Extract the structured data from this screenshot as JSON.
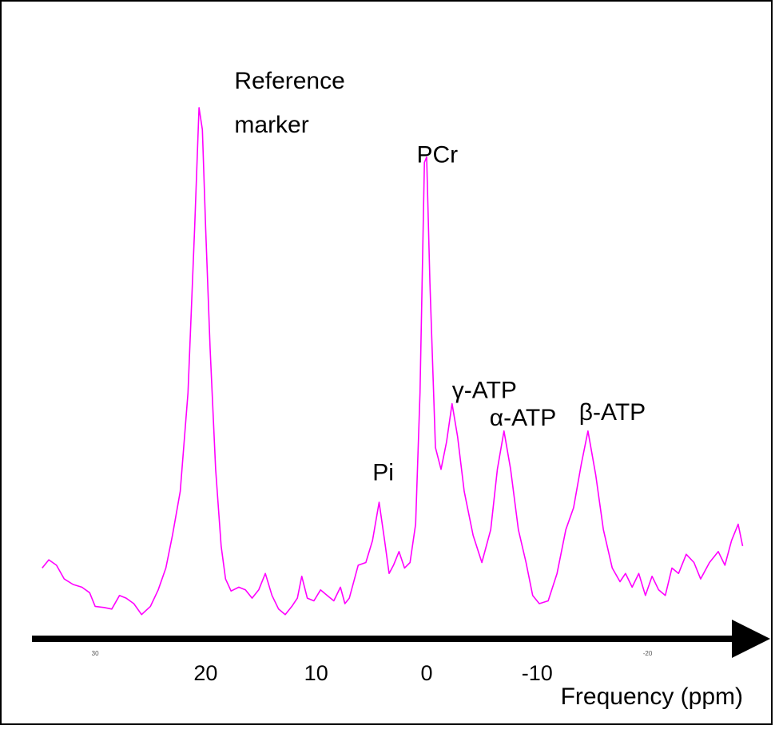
{
  "chart_data": {
    "type": "line",
    "xlabel": "Frequency (ppm)",
    "ylabel": "",
    "xlim": [
      35,
      -29
    ],
    "ylim": [
      -2,
      100
    ],
    "x_reversed": true,
    "grid": false,
    "line_color": "#ff00ff",
    "axis_arrow_color": "#000000",
    "x_ticks_major": [
      {
        "value": 20,
        "label": "20"
      },
      {
        "value": 10,
        "label": "10"
      },
      {
        "value": 0,
        "label": "0"
      },
      {
        "value": -10,
        "label": "-10"
      }
    ],
    "x_ticks_minor": [
      {
        "value": 30,
        "label": "30"
      },
      {
        "value": -20,
        "label": "-20"
      }
    ],
    "annotations": [
      {
        "text": "Reference",
        "x": 17.4,
        "y": 95.5
      },
      {
        "text": "marker",
        "x": 17.4,
        "y": 87.5
      },
      {
        "text": "PCr",
        "x": 0.9,
        "y": 82
      },
      {
        "text": "Pi",
        "x": 4.9,
        "y": 24
      },
      {
        "text": "γ-ATP",
        "x": -2.3,
        "y": 39
      },
      {
        "text": "α-ATP",
        "x": -5.7,
        "y": 34
      },
      {
        "text": "β-ATP",
        "x": -13.8,
        "y": 35
      }
    ],
    "series": [
      {
        "values": [
          [
            34.8,
            8
          ],
          [
            34.2,
            9.5
          ],
          [
            33.5,
            8.5
          ],
          [
            32.8,
            6
          ],
          [
            32,
            5
          ],
          [
            31.2,
            4.5
          ],
          [
            30.5,
            3.5
          ],
          [
            30,
            1
          ],
          [
            29.2,
            0.8
          ],
          [
            28.5,
            0.5
          ],
          [
            27.8,
            3
          ],
          [
            27.2,
            2.5
          ],
          [
            26.5,
            1.5
          ],
          [
            25.8,
            -0.5
          ],
          [
            25,
            1
          ],
          [
            24.3,
            4
          ],
          [
            23.6,
            8
          ],
          [
            23,
            14
          ],
          [
            22.3,
            22
          ],
          [
            21.6,
            40
          ],
          [
            21,
            70
          ],
          [
            20.6,
            92
          ],
          [
            20.3,
            88
          ],
          [
            20,
            70
          ],
          [
            19.6,
            48
          ],
          [
            19.1,
            26
          ],
          [
            18.6,
            12
          ],
          [
            18.2,
            6
          ],
          [
            17.7,
            3.8
          ],
          [
            17,
            4.5
          ],
          [
            16.4,
            4
          ],
          [
            15.8,
            2.5
          ],
          [
            15.2,
            4
          ],
          [
            14.6,
            7
          ],
          [
            14,
            3
          ],
          [
            13.4,
            0.5
          ],
          [
            12.8,
            -0.5
          ],
          [
            12.2,
            1
          ],
          [
            11.7,
            2.5
          ],
          [
            11.3,
            6.5
          ],
          [
            10.8,
            2.5
          ],
          [
            10.2,
            2
          ],
          [
            9.6,
            4
          ],
          [
            9,
            3
          ],
          [
            8.4,
            2
          ],
          [
            7.8,
            4.5
          ],
          [
            7.4,
            1.5
          ],
          [
            7,
            2.5
          ],
          [
            6.2,
            8.5
          ],
          [
            5.5,
            9
          ],
          [
            4.9,
            13
          ],
          [
            4.3,
            20
          ],
          [
            3.8,
            13
          ],
          [
            3.4,
            7
          ],
          [
            3,
            8.5
          ],
          [
            2.5,
            11
          ],
          [
            2,
            8
          ],
          [
            1.5,
            9
          ],
          [
            1,
            16
          ],
          [
            0.6,
            40
          ],
          [
            0.2,
            82
          ],
          [
            0,
            83
          ],
          [
            -0.3,
            60
          ],
          [
            -0.8,
            30
          ],
          [
            -1.3,
            26
          ],
          [
            -1.8,
            31
          ],
          [
            -2.3,
            38
          ],
          [
            -2.8,
            32
          ],
          [
            -3.4,
            22
          ],
          [
            -4.2,
            14
          ],
          [
            -5,
            9
          ],
          [
            -5.8,
            15
          ],
          [
            -6.4,
            26
          ],
          [
            -7,
            33
          ],
          [
            -7.6,
            26
          ],
          [
            -8.3,
            15
          ],
          [
            -9,
            9
          ],
          [
            -9.6,
            3
          ],
          [
            -10.2,
            1.5
          ],
          [
            -11,
            2
          ],
          [
            -11.8,
            7
          ],
          [
            -12.6,
            15
          ],
          [
            -13.3,
            19
          ],
          [
            -14,
            27
          ],
          [
            -14.6,
            33
          ],
          [
            -15.3,
            25
          ],
          [
            -16,
            15
          ],
          [
            -16.8,
            8
          ],
          [
            -17.5,
            5.5
          ],
          [
            -18,
            7
          ],
          [
            -18.6,
            4.5
          ],
          [
            -19.2,
            7
          ],
          [
            -19.8,
            3
          ],
          [
            -20.4,
            6.5
          ],
          [
            -21,
            4
          ],
          [
            -21.6,
            3
          ],
          [
            -22.2,
            8
          ],
          [
            -22.8,
            7
          ],
          [
            -23.5,
            10.5
          ],
          [
            -24.2,
            9
          ],
          [
            -24.8,
            6
          ],
          [
            -25.6,
            9
          ],
          [
            -26.4,
            11
          ],
          [
            -27,
            8.5
          ],
          [
            -27.6,
            13
          ],
          [
            -28.2,
            16
          ],
          [
            -28.6,
            12
          ]
        ]
      }
    ]
  }
}
